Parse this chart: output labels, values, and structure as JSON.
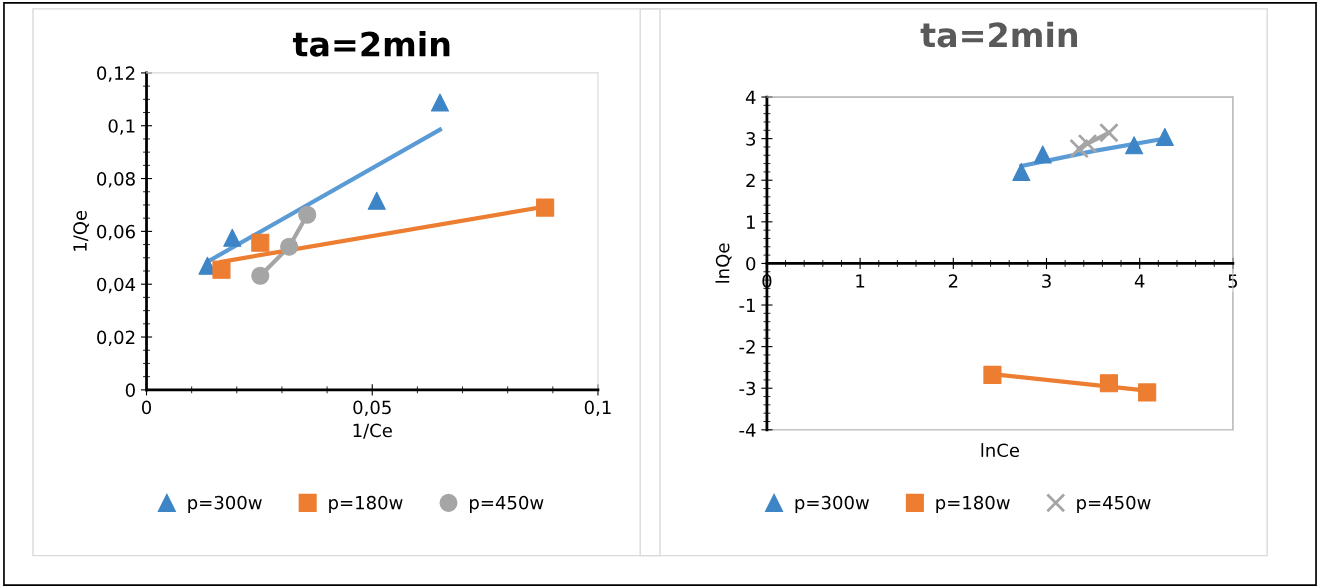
{
  "chart_data": [
    {
      "type": "scatter",
      "title": "ta=2min",
      "xlabel": "1/Ce",
      "ylabel": "1/Qe",
      "xlim": [
        0,
        0.1
      ],
      "ylim": [
        0,
        0.12
      ],
      "xticks": [
        0,
        {
          "value": 0.05,
          "label": "0,05"
        },
        {
          "value": 0.1,
          "label": "0,1"
        }
      ],
      "yticks": [
        0,
        {
          "value": 0.02,
          "label": "0,02"
        },
        {
          "value": 0.04,
          "label": "0,04"
        },
        {
          "value": 0.06,
          "label": "0,06"
        },
        {
          "value": 0.08,
          "label": "0,08"
        },
        {
          "value": 0.1,
          "label": "0,1"
        },
        {
          "value": 0.12,
          "label": "0,12"
        }
      ],
      "grid": false,
      "legend": "bottom",
      "series": [
        {
          "name": "p=300w",
          "marker": "triangle",
          "color": "#3d85c6",
          "x": [
            0.0135,
            0.019,
            0.051,
            0.065
          ],
          "values": [
            0.047,
            0.0576,
            0.0716,
            0.1088
          ]
        },
        {
          "name": "p=180w",
          "marker": "square",
          "color": "#ed7d31",
          "x": [
            0.0166,
            0.0252,
            0.0883
          ],
          "values": [
            0.0455,
            0.0557,
            0.069
          ]
        },
        {
          "name": "p=450w",
          "type": "line",
          "marker": "circle",
          "color": "#a5a5a5",
          "x": [
            0.0252,
            0.0316,
            0.0356
          ],
          "values": [
            0.0432,
            0.0542,
            0.0663
          ]
        },
        {
          "type": "line",
          "marker": "none",
          "color": "#5b9bd5",
          "x": [
            0.0135,
            0.065
          ],
          "values": [
            0.0485,
            0.0985
          ]
        },
        {
          "type": "line",
          "marker": "none",
          "color": "#ed7d31",
          "x": [
            0.0166,
            0.0883
          ],
          "values": [
            0.0485,
            0.0694
          ]
        }
      ]
    },
    {
      "type": "scatter",
      "title": "ta=2min",
      "xlabel": "lnCe",
      "ylabel": "lnQe",
      "xlim": [
        0,
        5
      ],
      "ylim": [
        -4,
        4
      ],
      "xticks": [
        0,
        1,
        2,
        3,
        4,
        5
      ],
      "yticks": [
        -4,
        -3,
        -2,
        -1,
        0,
        1,
        2,
        3,
        4
      ],
      "grid": false,
      "legend": "bottom",
      "series": [
        {
          "name": "p=300w",
          "marker": "triangle",
          "color": "#3d85c6",
          "x": [
            2.73,
            2.96,
            3.94,
            4.27
          ],
          "values": [
            2.2,
            2.62,
            2.84,
            3.04
          ]
        },
        {
          "name": "p=180w",
          "marker": "square",
          "color": "#ed7d31",
          "x": [
            2.42,
            3.67,
            4.08
          ],
          "values": [
            -2.68,
            -2.88,
            -3.1
          ]
        },
        {
          "name": "p=450w",
          "type": "line",
          "marker": "cross",
          "color": "#a5a5a5",
          "x": [
            3.35,
            3.44,
            3.67
          ],
          "values": [
            2.76,
            2.88,
            3.14
          ]
        },
        {
          "type": "line",
          "marker": "none",
          "color": "#5b9bd5",
          "x": [
            2.73,
            3.5,
            4.27
          ],
          "values": [
            2.34,
            2.7,
            3.0
          ]
        },
        {
          "type": "line",
          "marker": "none",
          "color": "#ed7d31",
          "x": [
            2.42,
            4.08
          ],
          "values": [
            -2.66,
            -3.06
          ]
        }
      ]
    }
  ]
}
